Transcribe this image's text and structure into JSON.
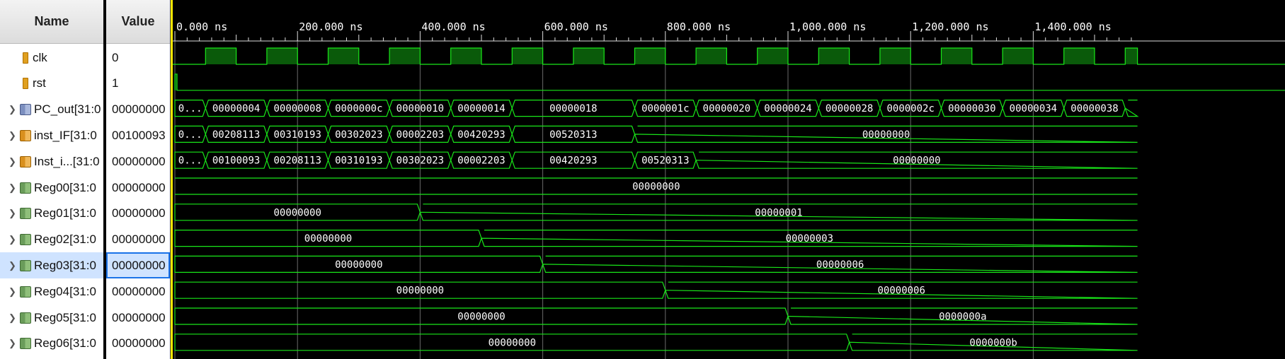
{
  "columns": {
    "name_header": "Name",
    "value_header": "Value"
  },
  "timeline": {
    "labels": [
      "0.000 ns",
      "200.000 ns",
      "400.000 ns",
      "600.000 ns",
      "800.000 ns",
      "1,000.000 ns",
      "1,200.000 ns",
      "1,400.000 ns"
    ],
    "ns_per_major": 200,
    "visible_ns": 1570
  },
  "colors": {
    "wave": "#19e619",
    "fill": "#0a5a0a",
    "cursor": "#f6e600",
    "grid": "#6a6a6a"
  },
  "signals": [
    {
      "name": "clk",
      "value": "0",
      "icon": "bit-icon",
      "type": "clock",
      "expandable": false
    },
    {
      "name": "rst",
      "value": "1",
      "icon": "bit-icon",
      "type": "bit",
      "expandable": false
    },
    {
      "name": "PC_out[31:0]",
      "display_name": "PC_out[31:0",
      "value": "00000000",
      "icon": "bus-icon-blue",
      "type": "bus",
      "expandable": true,
      "segments": [
        {
          "t0": 0,
          "t1": 50,
          "v": "0..."
        },
        {
          "t0": 50,
          "t1": 150,
          "v": "00000004"
        },
        {
          "t0": 150,
          "t1": 250,
          "v": "00000008"
        },
        {
          "t0": 250,
          "t1": 350,
          "v": "0000000c"
        },
        {
          "t0": 350,
          "t1": 450,
          "v": "00000010"
        },
        {
          "t0": 450,
          "t1": 550,
          "v": "00000014"
        },
        {
          "t0": 550,
          "t1": 750,
          "v": "00000018"
        },
        {
          "t0": 750,
          "t1": 850,
          "v": "0000001c"
        },
        {
          "t0": 850,
          "t1": 950,
          "v": "00000020"
        },
        {
          "t0": 950,
          "t1": 1050,
          "v": "00000024"
        },
        {
          "t0": 1050,
          "t1": 1150,
          "v": "00000028"
        },
        {
          "t0": 1150,
          "t1": 1250,
          "v": "0000002c"
        },
        {
          "t0": 1250,
          "t1": 1350,
          "v": "00000030"
        },
        {
          "t0": 1350,
          "t1": 1450,
          "v": "00000034"
        },
        {
          "t0": 1450,
          "t1": 1550,
          "v": "00000038"
        },
        {
          "t0": 1550,
          "t1": 1570,
          "v": ""
        }
      ]
    },
    {
      "name": "inst_IF[31:0]",
      "display_name": "inst_IF[31:0",
      "value": "00100093",
      "icon": "bus-icon-orange",
      "type": "bus",
      "expandable": true,
      "segments": [
        {
          "t0": 0,
          "t1": 50,
          "v": "0..."
        },
        {
          "t0": 50,
          "t1": 150,
          "v": "00208113"
        },
        {
          "t0": 150,
          "t1": 250,
          "v": "00310193"
        },
        {
          "t0": 250,
          "t1": 350,
          "v": "00302023"
        },
        {
          "t0": 350,
          "t1": 450,
          "v": "00002203"
        },
        {
          "t0": 450,
          "t1": 550,
          "v": "00420293"
        },
        {
          "t0": 550,
          "t1": 750,
          "v": "00520313"
        },
        {
          "t0": 750,
          "t1": 1570,
          "v": "00000000"
        }
      ]
    },
    {
      "name": "Inst_i...[31:0]",
      "display_name": "Inst_i...[31:0",
      "value": "00000000",
      "icon": "bus-icon-orange",
      "type": "bus",
      "expandable": true,
      "segments": [
        {
          "t0": 0,
          "t1": 50,
          "v": "0..."
        },
        {
          "t0": 50,
          "t1": 150,
          "v": "00100093"
        },
        {
          "t0": 150,
          "t1": 250,
          "v": "00208113"
        },
        {
          "t0": 250,
          "t1": 350,
          "v": "00310193"
        },
        {
          "t0": 350,
          "t1": 450,
          "v": "00302023"
        },
        {
          "t0": 450,
          "t1": 550,
          "v": "00002203"
        },
        {
          "t0": 550,
          "t1": 750,
          "v": "00420293"
        },
        {
          "t0": 750,
          "t1": 850,
          "v": "00520313"
        },
        {
          "t0": 850,
          "t1": 1570,
          "v": "00000000"
        }
      ]
    },
    {
      "name": "Reg00[31:0]",
      "display_name": "Reg00[31:0",
      "value": "00000000",
      "icon": "bus-icon",
      "type": "bus",
      "expandable": true,
      "segments": [
        {
          "t0": 0,
          "t1": 1570,
          "v": "00000000"
        }
      ]
    },
    {
      "name": "Reg01[31:0]",
      "display_name": "Reg01[31:0",
      "value": "00000000",
      "icon": "bus-icon",
      "type": "bus",
      "expandable": true,
      "segments": [
        {
          "t0": 0,
          "t1": 400,
          "v": "00000000"
        },
        {
          "t0": 400,
          "t1": 1570,
          "v": "00000001"
        }
      ]
    },
    {
      "name": "Reg02[31:0]",
      "display_name": "Reg02[31:0",
      "value": "00000000",
      "icon": "bus-icon",
      "type": "bus",
      "expandable": true,
      "segments": [
        {
          "t0": 0,
          "t1": 500,
          "v": "00000000"
        },
        {
          "t0": 500,
          "t1": 1570,
          "v": "00000003"
        }
      ]
    },
    {
      "name": "Reg03[31:0]",
      "display_name": "Reg03[31:0",
      "value": "00000000",
      "icon": "bus-icon",
      "type": "bus",
      "expandable": true,
      "selected": true,
      "segments": [
        {
          "t0": 0,
          "t1": 600,
          "v": "00000000"
        },
        {
          "t0": 600,
          "t1": 1570,
          "v": "00000006"
        }
      ]
    },
    {
      "name": "Reg04[31:0]",
      "display_name": "Reg04[31:0",
      "value": "00000000",
      "icon": "bus-icon",
      "type": "bus",
      "expandable": true,
      "segments": [
        {
          "t0": 0,
          "t1": 800,
          "v": "00000000"
        },
        {
          "t0": 800,
          "t1": 1570,
          "v": "00000006"
        }
      ]
    },
    {
      "name": "Reg05[31:0]",
      "display_name": "Reg05[31:0",
      "value": "00000000",
      "icon": "bus-icon",
      "type": "bus",
      "expandable": true,
      "segments": [
        {
          "t0": 0,
          "t1": 1000,
          "v": "00000000"
        },
        {
          "t0": 1000,
          "t1": 1570,
          "v": "0000000a"
        }
      ]
    },
    {
      "name": "Reg06[31:0]",
      "display_name": "Reg06[31:0",
      "value": "00000000",
      "icon": "bus-icon",
      "type": "bus",
      "expandable": true,
      "segments": [
        {
          "t0": 0,
          "t1": 1100,
          "v": "00000000"
        },
        {
          "t0": 1100,
          "t1": 1570,
          "v": "0000000b"
        }
      ]
    }
  ]
}
